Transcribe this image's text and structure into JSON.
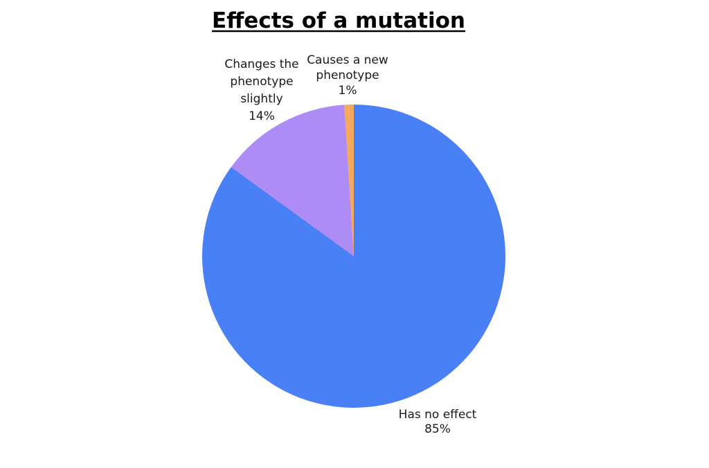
{
  "chart_data": {
    "type": "pie",
    "title": "Effects of a mutation",
    "slices": [
      {
        "label": "Has no effect",
        "value": 85,
        "value_label": "85%",
        "color": "#4a80f5"
      },
      {
        "label": "Changes the phenotype slightly",
        "label_lines": [
          "Changes the",
          "phenotype",
          "slightly"
        ],
        "value": 14,
        "value_label": "14%",
        "color": "#ad8df5"
      },
      {
        "label": "Causes a new phenotype",
        "label_lines": [
          "Causes a new",
          "phenotype"
        ],
        "value": 1,
        "value_label": "1%",
        "color": "#f5a95c"
      }
    ],
    "start_angle_deg": 0,
    "direction": "clockwise",
    "legend": "none"
  }
}
